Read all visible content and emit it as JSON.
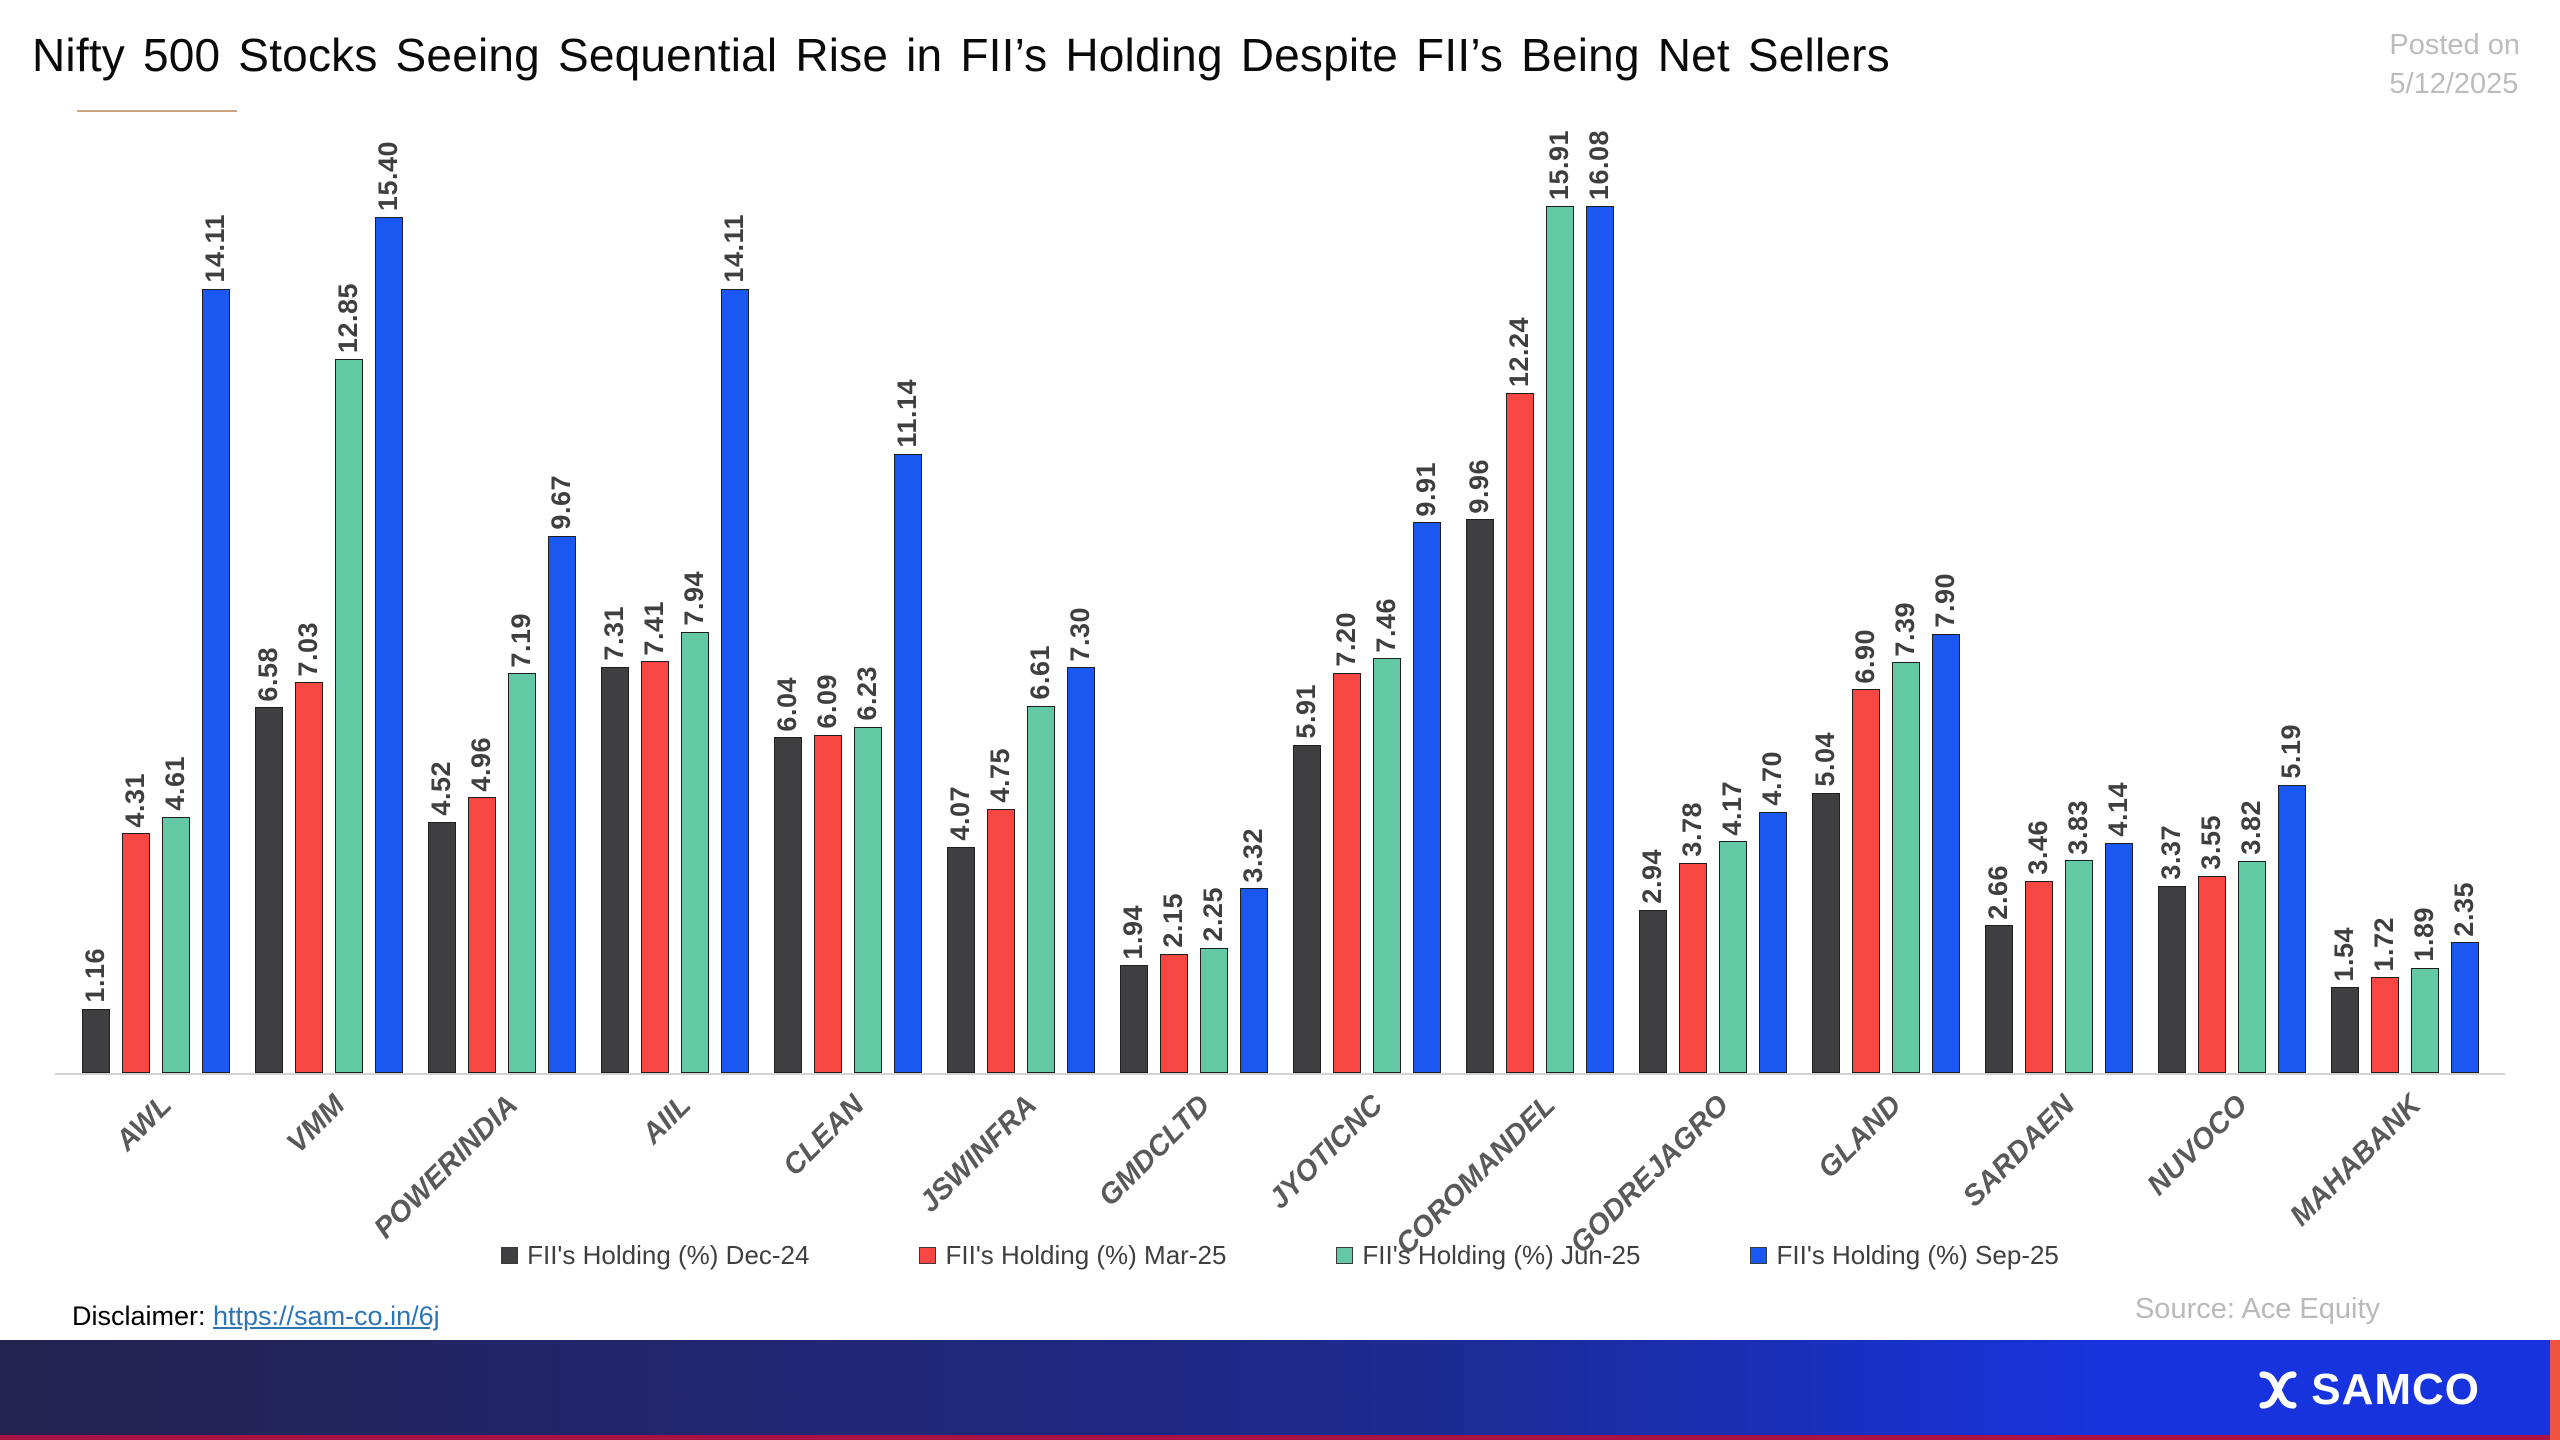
{
  "header": {
    "title": "Nifty 500 Stocks Seeing Sequential Rise in FII’s Holding Despite FII’s Being Net Sellers",
    "posted_on_line1": "Posted on",
    "posted_on_line2": "5/12/2025"
  },
  "chart_data": {
    "type": "bar",
    "title": "Nifty 500 Stocks Seeing Sequential Rise in FII’s Holding Despite FII’s Being Net Sellers",
    "categories": [
      "AWL",
      "VMM",
      "POWERINDIA",
      "AIIL",
      "CLEAN",
      "JSWINFRA",
      "GMDCLTD",
      "JYOTICNC",
      "COROMANDEL",
      "GODREJAGRO",
      "GLAND",
      "SARDAEN",
      "NUVOCO",
      "MAHABANK"
    ],
    "series": [
      {
        "name": "FII's Holding (%) Dec-24",
        "color": "#3f3f41",
        "values": [
          1.16,
          6.58,
          4.52,
          7.31,
          6.04,
          4.07,
          1.94,
          5.91,
          9.96,
          2.94,
          5.04,
          2.66,
          3.37,
          1.54
        ]
      },
      {
        "name": "FII's Holding (%) Mar-25",
        "color": "#f84743",
        "values": [
          4.31,
          7.03,
          4.96,
          7.41,
          6.09,
          4.75,
          2.15,
          7.2,
          12.24,
          3.78,
          6.9,
          3.46,
          3.55,
          1.72
        ]
      },
      {
        "name": "FII's Holding (%) Jun-25",
        "color": "#63c9a4",
        "values": [
          4.61,
          12.85,
          7.19,
          7.94,
          6.23,
          6.61,
          2.25,
          7.46,
          15.91,
          4.17,
          7.39,
          3.83,
          3.82,
          1.89
        ]
      },
      {
        "name": "FII's Holding (%) Sep-25",
        "color": "#1b57f1",
        "values": [
          14.11,
          15.4,
          9.67,
          14.11,
          11.14,
          7.3,
          3.32,
          9.91,
          16.08,
          4.7,
          7.9,
          4.14,
          5.19,
          2.35
        ]
      }
    ],
    "xlabel": "",
    "ylabel": "",
    "ylim": [
      0,
      17
    ],
    "grid": false,
    "legend_position": "bottom",
    "value_labels": true,
    "value_label_format": "2dp"
  },
  "footer": {
    "disclaimer_label": "Disclaimer: ",
    "disclaimer_link": "https://sam-co.in/6j",
    "source": "Source: Ace Equity",
    "brand": "SAMCO"
  },
  "colors": {
    "title_text": "#0a0a0a",
    "muted_text": "#bcbcbc",
    "axis_line": "#d2d2d2",
    "category_text": "#595959",
    "value_text": "#3f3f3f",
    "link": "#2e75b6",
    "title_underline": "#c9a481",
    "band_gradient_start": "#24224f",
    "band_gradient_end": "#1633dd",
    "band_bottom_line": "#a81345",
    "band_right_stripe": "#f05340"
  }
}
